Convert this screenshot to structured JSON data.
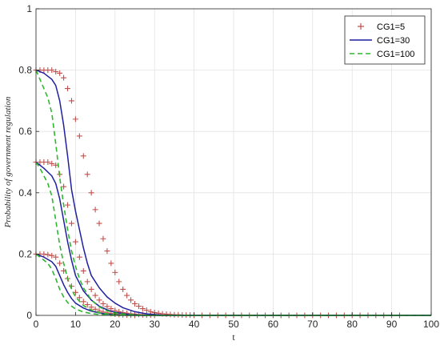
{
  "chart_data": {
    "type": "line",
    "xlabel": "t",
    "ylabel": "Probability of government regulation",
    "xlim": [
      0,
      100
    ],
    "ylim": [
      0,
      1
    ],
    "xticks": [
      "0",
      "10",
      "20",
      "30",
      "40",
      "50",
      "60",
      "70",
      "80",
      "90",
      "100"
    ],
    "yticks": [
      "0",
      "0.2",
      "0.4",
      "0.6",
      "0.8",
      "1"
    ],
    "grid": true,
    "legend_position": "top-right",
    "series": [
      {
        "name": "CG1=5",
        "style": "plus-markers",
        "color": "#c0504d",
        "curves": [
          [
            [
              0,
              0.8
            ],
            [
              1,
              0.8
            ],
            [
              2,
              0.8
            ],
            [
              3,
              0.8
            ],
            [
              4,
              0.8
            ],
            [
              5,
              0.795
            ],
            [
              6,
              0.79
            ],
            [
              7,
              0.775
            ],
            [
              8,
              0.74
            ],
            [
              9,
              0.7
            ],
            [
              10,
              0.64
            ],
            [
              11,
              0.585
            ],
            [
              12,
              0.52
            ],
            [
              13,
              0.46
            ],
            [
              14,
              0.4
            ],
            [
              15,
              0.345
            ],
            [
              16,
              0.3
            ],
            [
              17,
              0.25
            ],
            [
              18,
              0.21
            ],
            [
              19,
              0.17
            ],
            [
              20,
              0.14
            ],
            [
              21,
              0.11
            ],
            [
              22,
              0.085
            ],
            [
              23,
              0.065
            ],
            [
              24,
              0.05
            ],
            [
              25,
              0.038
            ],
            [
              26,
              0.03
            ],
            [
              27,
              0.022
            ],
            [
              28,
              0.017
            ],
            [
              29,
              0.012
            ],
            [
              30,
              0.009
            ],
            [
              31,
              0.007
            ],
            [
              32,
              0.005
            ],
            [
              33,
              0.004
            ],
            [
              34,
              0.003
            ],
            [
              35,
              0.002
            ],
            [
              36,
              0.002
            ],
            [
              37,
              0.001
            ],
            [
              38,
              0.001
            ],
            [
              39,
              0.001
            ],
            [
              40,
              0
            ],
            [
              42,
              0
            ],
            [
              44,
              0
            ],
            [
              46,
              0
            ],
            [
              48,
              0
            ],
            [
              50,
              0
            ],
            [
              52,
              0
            ],
            [
              54,
              0
            ],
            [
              56,
              0
            ],
            [
              58,
              0
            ],
            [
              60,
              0
            ],
            [
              62,
              0
            ],
            [
              64,
              0
            ],
            [
              66,
              0
            ],
            [
              68,
              0
            ],
            [
              70,
              0
            ],
            [
              72,
              0
            ],
            [
              74,
              0
            ],
            [
              76,
              0
            ],
            [
              78,
              0
            ],
            [
              80,
              0
            ],
            [
              82,
              0
            ],
            [
              84,
              0
            ],
            [
              86,
              0
            ],
            [
              88,
              0
            ],
            [
              90,
              0
            ],
            [
              92,
              0
            ]
          ],
          [
            [
              0,
              0.5
            ],
            [
              1,
              0.5
            ],
            [
              2,
              0.5
            ],
            [
              3,
              0.5
            ],
            [
              4,
              0.495
            ],
            [
              5,
              0.49
            ],
            [
              6,
              0.46
            ],
            [
              7,
              0.42
            ],
            [
              8,
              0.36
            ],
            [
              9,
              0.3
            ],
            [
              10,
              0.24
            ],
            [
              11,
              0.19
            ],
            [
              12,
              0.145
            ],
            [
              13,
              0.11
            ],
            [
              14,
              0.085
            ],
            [
              15,
              0.065
            ],
            [
              16,
              0.05
            ],
            [
              17,
              0.038
            ],
            [
              18,
              0.029
            ],
            [
              19,
              0.022
            ],
            [
              20,
              0.016
            ],
            [
              21,
              0.012
            ],
            [
              22,
              0.009
            ],
            [
              23,
              0.007
            ],
            [
              24,
              0.005
            ],
            [
              25,
              0.004
            ],
            [
              26,
              0.003
            ],
            [
              27,
              0.002
            ],
            [
              28,
              0.001
            ],
            [
              29,
              0.001
            ],
            [
              30,
              0
            ]
          ],
          [
            [
              0,
              0.2
            ],
            [
              1,
              0.2
            ],
            [
              2,
              0.2
            ],
            [
              3,
              0.198
            ],
            [
              4,
              0.195
            ],
            [
              5,
              0.19
            ],
            [
              6,
              0.17
            ],
            [
              7,
              0.145
            ],
            [
              8,
              0.12
            ],
            [
              9,
              0.095
            ],
            [
              10,
              0.075
            ],
            [
              11,
              0.058
            ],
            [
              12,
              0.045
            ],
            [
              13,
              0.035
            ],
            [
              14,
              0.027
            ],
            [
              15,
              0.02
            ],
            [
              16,
              0.015
            ],
            [
              17,
              0.011
            ],
            [
              18,
              0.008
            ],
            [
              19,
              0.006
            ],
            [
              20,
              0.004
            ],
            [
              21,
              0.003
            ],
            [
              22,
              0.002
            ],
            [
              23,
              0.001
            ],
            [
              24,
              0.001
            ],
            [
              25,
              0
            ]
          ]
        ]
      },
      {
        "name": "CG1=30",
        "style": "solid",
        "color": "#1f1fa0",
        "curves": [
          [
            [
              0,
              0.8
            ],
            [
              2,
              0.79
            ],
            [
              4,
              0.77
            ],
            [
              5,
              0.75
            ],
            [
              6,
              0.7
            ],
            [
              7,
              0.62
            ],
            [
              8,
              0.52
            ],
            [
              9,
              0.41
            ],
            [
              10,
              0.34
            ],
            [
              11,
              0.28
            ],
            [
              12,
              0.22
            ],
            [
              13,
              0.17
            ],
            [
              14,
              0.13
            ],
            [
              16,
              0.09
            ],
            [
              18,
              0.06
            ],
            [
              20,
              0.04
            ],
            [
              22,
              0.025
            ],
            [
              25,
              0.012
            ],
            [
              28,
              0.005
            ],
            [
              32,
              0.001
            ],
            [
              35,
              0
            ],
            [
              100,
              0
            ]
          ],
          [
            [
              0,
              0.5
            ],
            [
              2,
              0.48
            ],
            [
              4,
              0.455
            ],
            [
              5,
              0.43
            ],
            [
              6,
              0.38
            ],
            [
              7,
              0.31
            ],
            [
              8,
              0.24
            ],
            [
              9,
              0.18
            ],
            [
              10,
              0.13
            ],
            [
              12,
              0.08
            ],
            [
              14,
              0.05
            ],
            [
              16,
              0.03
            ],
            [
              18,
              0.018
            ],
            [
              20,
              0.01
            ],
            [
              23,
              0.004
            ],
            [
              26,
              0.001
            ],
            [
              30,
              0
            ],
            [
              100,
              0
            ]
          ],
          [
            [
              0,
              0.2
            ],
            [
              2,
              0.19
            ],
            [
              4,
              0.175
            ],
            [
              5,
              0.16
            ],
            [
              6,
              0.13
            ],
            [
              7,
              0.1
            ],
            [
              8,
              0.075
            ],
            [
              9,
              0.055
            ],
            [
              10,
              0.04
            ],
            [
              12,
              0.024
            ],
            [
              14,
              0.014
            ],
            [
              16,
              0.008
            ],
            [
              18,
              0.004
            ],
            [
              20,
              0.002
            ],
            [
              23,
              0
            ],
            [
              100,
              0
            ]
          ]
        ]
      },
      {
        "name": "CG1=100",
        "style": "dashed",
        "color": "#2eb82e",
        "curves": [
          [
            [
              0,
              0.8
            ],
            [
              1,
              0.77
            ],
            [
              2,
              0.74
            ],
            [
              3,
              0.71
            ],
            [
              4,
              0.66
            ],
            [
              5,
              0.56
            ],
            [
              6,
              0.45
            ],
            [
              7,
              0.36
            ],
            [
              8,
              0.28
            ],
            [
              9,
              0.21
            ],
            [
              10,
              0.16
            ],
            [
              11,
              0.12
            ],
            [
              12,
              0.09
            ],
            [
              14,
              0.05
            ],
            [
              16,
              0.028
            ],
            [
              18,
              0.015
            ],
            [
              20,
              0.008
            ],
            [
              23,
              0.003
            ],
            [
              26,
              0.001
            ],
            [
              30,
              0
            ],
            [
              100,
              0
            ]
          ],
          [
            [
              0,
              0.5
            ],
            [
              1,
              0.48
            ],
            [
              2,
              0.455
            ],
            [
              3,
              0.43
            ],
            [
              4,
              0.39
            ],
            [
              5,
              0.31
            ],
            [
              6,
              0.23
            ],
            [
              7,
              0.17
            ],
            [
              8,
              0.12
            ],
            [
              9,
              0.085
            ],
            [
              10,
              0.06
            ],
            [
              12,
              0.032
            ],
            [
              14,
              0.017
            ],
            [
              16,
              0.009
            ],
            [
              18,
              0.005
            ],
            [
              20,
              0.002
            ],
            [
              23,
              0.001
            ],
            [
              26,
              0
            ],
            [
              100,
              0
            ]
          ],
          [
            [
              0,
              0.2
            ],
            [
              1,
              0.19
            ],
            [
              2,
              0.18
            ],
            [
              3,
              0.17
            ],
            [
              4,
              0.15
            ],
            [
              5,
              0.12
            ],
            [
              6,
              0.085
            ],
            [
              7,
              0.06
            ],
            [
              8,
              0.042
            ],
            [
              9,
              0.03
            ],
            [
              10,
              0.021
            ],
            [
              12,
              0.011
            ],
            [
              14,
              0.006
            ],
            [
              16,
              0.003
            ],
            [
              18,
              0.001
            ],
            [
              20,
              0
            ],
            [
              100,
              0
            ]
          ]
        ]
      }
    ]
  }
}
